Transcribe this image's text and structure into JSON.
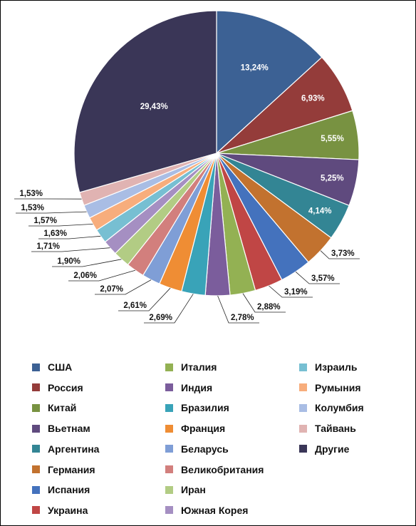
{
  "chart_data": {
    "type": "pie",
    "start_angle_deg": 0,
    "direction": "clockwise",
    "legend_position": "bottom",
    "slices": [
      {
        "name": "США",
        "value": 13.24,
        "label": "13,24%",
        "color": "#3c6194"
      },
      {
        "name": "Россия",
        "value": 6.93,
        "label": "6,93%",
        "color": "#943c3a"
      },
      {
        "name": "Китай",
        "value": 5.55,
        "label": "5,55%",
        "color": "#789241"
      },
      {
        "name": "Вьетнам",
        "value": 5.25,
        "label": "5,25%",
        "color": "#5f4a7e"
      },
      {
        "name": "Аргентина",
        "value": 4.14,
        "label": "4,14%",
        "color": "#338594"
      },
      {
        "name": "Германия",
        "value": 3.73,
        "label": "3,73%",
        "color": "#c2722f"
      },
      {
        "name": "Испания",
        "value": 3.57,
        "label": "3,57%",
        "color": "#4472bd"
      },
      {
        "name": "Украина",
        "value": 3.19,
        "label": "3,19%",
        "color": "#c04645"
      },
      {
        "name": "Италия",
        "value": 2.88,
        "label": "2,88%",
        "color": "#93b153"
      },
      {
        "name": "Индия",
        "value": 2.78,
        "label": "2,78%",
        "color": "#7b5d9c"
      },
      {
        "name": "Бразилия",
        "value": 2.69,
        "label": "2,69%",
        "color": "#39a3b8"
      },
      {
        "name": "Франция",
        "value": 2.61,
        "label": "2,61%",
        "color": "#ef8d34"
      },
      {
        "name": "Беларусь",
        "value": 2.07,
        "label": "2,07%",
        "color": "#7f9ed6"
      },
      {
        "name": "Великобритания",
        "value": 2.06,
        "label": "2,06%",
        "color": "#d27f7d"
      },
      {
        "name": "Иран",
        "value": 1.9,
        "label": "1,90%",
        "color": "#b2cc84"
      },
      {
        "name": "Южная Корея",
        "value": 1.71,
        "label": "1,71%",
        "color": "#a58fc2"
      },
      {
        "name": "Израиль",
        "value": 1.63,
        "label": "1,63%",
        "color": "#77bfd2"
      },
      {
        "name": "Румыния",
        "value": 1.57,
        "label": "1,57%",
        "color": "#f7ad7c"
      },
      {
        "name": "Колумбия",
        "value": 1.53,
        "label": "1,53%",
        "color": "#a9bde4"
      },
      {
        "name": "Тайвань",
        "value": 1.53,
        "label": "1,53%",
        "color": "#e0b3b2"
      },
      {
        "name": "Другие",
        "value": 29.43,
        "label": "29,43%",
        "color": "#3a3657"
      }
    ]
  }
}
